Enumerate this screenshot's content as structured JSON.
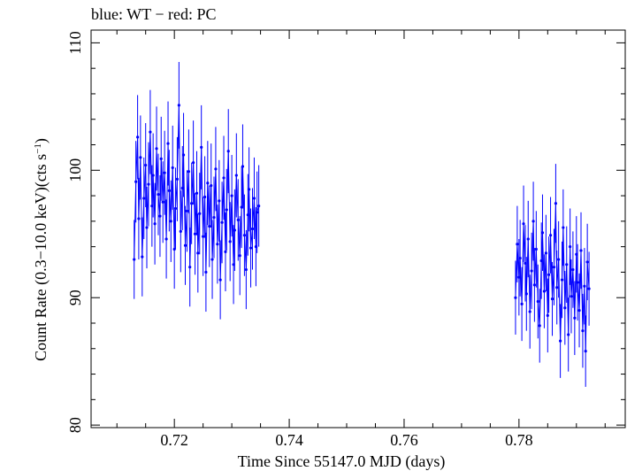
{
  "chart_data": {
    "type": "scatter",
    "title": "blue: WT − red: PC",
    "xlabel": "Time Since 55147.0 MJD (days)",
    "ylabel_main": "Count Rate (0.3−10.0 keV)(cts s",
    "ylabel_sup": "−1",
    "ylabel_close": ")",
    "xlim": [
      0.7055,
      0.7985
    ],
    "ylim": [
      79.8,
      111.0
    ],
    "x_ticks": [
      0.72,
      0.74,
      0.76,
      0.78
    ],
    "x_tick_labels": [
      "0.72",
      "0.74",
      "0.76",
      "0.78"
    ],
    "y_ticks": [
      80,
      90,
      100,
      110
    ],
    "y_tick_labels": [
      "80",
      "90",
      "100",
      "110"
    ],
    "grid": false,
    "series": [
      {
        "color": "#0000ff",
        "x": [
          0.713,
          0.7133,
          0.7136,
          0.7138,
          0.7141,
          0.7144,
          0.7147,
          0.715,
          0.7152,
          0.7155,
          0.7158,
          0.7161,
          0.7163,
          0.7166,
          0.7169,
          0.7172,
          0.7175,
          0.7177,
          0.718,
          0.7183,
          0.7186,
          0.7189,
          0.7191,
          0.7194,
          0.7197,
          0.72,
          0.7202,
          0.7205,
          0.7208,
          0.7211,
          0.7214,
          0.7216,
          0.7219,
          0.7222,
          0.7225,
          0.7227,
          0.723,
          0.7233,
          0.7236,
          0.7239,
          0.7241,
          0.7244,
          0.7247,
          0.725,
          0.7253,
          0.7255,
          0.7258,
          0.7261,
          0.7264,
          0.7266,
          0.7269,
          0.7272,
          0.7275,
          0.7278,
          0.728,
          0.7283,
          0.7286,
          0.7289,
          0.7291,
          0.7294,
          0.7297,
          0.73,
          0.7303,
          0.7305,
          0.7308,
          0.7311,
          0.7314,
          0.7317,
          0.7319,
          0.7322,
          0.7325,
          0.7328,
          0.733,
          0.7333,
          0.7336,
          0.7339,
          0.7342,
          0.7344,
          0.7347
        ],
        "y": [
          93.0,
          99.1,
          102.6,
          96.2,
          101.0,
          93.2,
          97.8,
          100.4,
          95.5,
          98.9,
          103.0,
          97.2,
          99.6,
          95.8,
          101.7,
          98.1,
          96.4,
          100.9,
          97.5,
          99.8,
          94.6,
          102.1,
          98.4,
          96.0,
          100.2,
          93.8,
          97.0,
          99.3,
          105.1,
          95.2,
          98.6,
          101.2,
          94.1,
          96.8,
          99.9,
          92.4,
          97.4,
          100.6,
          95.0,
          98.2,
          93.5,
          96.6,
          101.8,
          94.8,
          97.9,
          92.0,
          99.0,
          95.6,
          98.8,
          93.0,
          96.3,
          100.1,
          94.2,
          97.6,
          91.4,
          95.9,
          99.4,
          93.6,
          96.9,
          101.5,
          94.4,
          98.0,
          92.6,
          95.3,
          99.6,
          96.1,
          93.3,
          97.1,
          100.3,
          94.9,
          92.2,
          96.5,
          98.5,
          93.9,
          95.4,
          97.8,
          94.0,
          96.7,
          97.2
        ],
        "err": [
          3.1,
          3.2,
          3.3,
          3.2,
          3.3,
          3.1,
          3.2,
          3.3,
          3.2,
          3.3,
          3.3,
          3.2,
          3.3,
          3.2,
          3.3,
          3.2,
          3.2,
          3.3,
          3.2,
          3.3,
          3.1,
          3.3,
          3.2,
          3.2,
          3.3,
          3.1,
          3.2,
          3.3,
          3.4,
          3.2,
          3.3,
          3.3,
          3.1,
          3.2,
          3.3,
          3.1,
          3.2,
          3.3,
          3.2,
          3.3,
          3.1,
          3.2,
          3.3,
          3.1,
          3.2,
          3.1,
          3.3,
          3.2,
          3.3,
          3.1,
          3.2,
          3.3,
          3.1,
          3.2,
          3.1,
          3.2,
          3.3,
          3.1,
          3.2,
          3.3,
          3.1,
          3.2,
          3.1,
          3.2,
          3.3,
          3.2,
          3.1,
          3.2,
          3.3,
          3.2,
          3.1,
          3.2,
          3.3,
          3.1,
          3.2,
          3.2,
          3.1,
          3.2,
          3.2
        ]
      },
      {
        "color": "#0000ff",
        "x": [
          0.7794,
          0.7797,
          0.78,
          0.7802,
          0.7805,
          0.7808,
          0.7811,
          0.7813,
          0.7816,
          0.7819,
          0.7822,
          0.7825,
          0.7827,
          0.783,
          0.7833,
          0.7836,
          0.7839,
          0.7841,
          0.7844,
          0.7847,
          0.785,
          0.7852,
          0.7855,
          0.7858,
          0.7861,
          0.7864,
          0.7866,
          0.7869,
          0.7872,
          0.7875,
          0.7877,
          0.788,
          0.7883,
          0.7886,
          0.7889,
          0.7891,
          0.7894,
          0.7897,
          0.79,
          0.7902,
          0.7905,
          0.7908,
          0.7911,
          0.7914,
          0.7916,
          0.7919,
          0.7922
        ],
        "y": [
          90.0,
          94.2,
          91.6,
          93.1,
          89.5,
          95.8,
          92.7,
          90.3,
          94.6,
          88.9,
          92.1,
          96.0,
          91.0,
          93.8,
          89.7,
          87.8,
          92.9,
          95.1,
          90.5,
          93.5,
          88.6,
          91.8,
          94.9,
          89.9,
          92.4,
          97.4,
          90.8,
          93.0,
          86.6,
          91.4,
          95.5,
          89.2,
          92.6,
          87.1,
          94.0,
          90.1,
          92.2,
          88.4,
          93.4,
          91.2,
          89.0,
          93.7,
          87.4,
          90.9,
          85.8,
          92.8,
          90.7
        ],
        "err": [
          2.9,
          3.0,
          3.0,
          3.0,
          2.9,
          3.0,
          3.0,
          2.9,
          3.0,
          2.9,
          3.0,
          3.1,
          2.9,
          3.0,
          2.9,
          2.9,
          3.0,
          3.0,
          2.9,
          3.0,
          2.9,
          3.0,
          3.0,
          2.9,
          3.0,
          3.1,
          2.9,
          3.0,
          2.9,
          3.0,
          3.0,
          2.9,
          3.0,
          2.9,
          3.0,
          2.9,
          3.0,
          2.9,
          3.0,
          3.0,
          2.9,
          3.0,
          2.9,
          3.0,
          2.8,
          3.0,
          2.9
        ]
      }
    ]
  }
}
